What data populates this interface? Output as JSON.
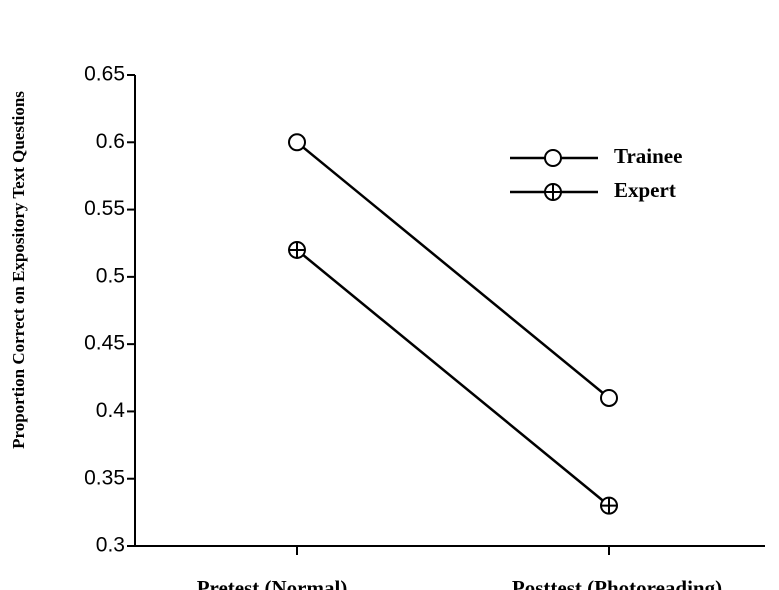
{
  "chart_data": {
    "type": "line",
    "y_label": "Proportion Correct on Expository Text Questions",
    "categories": [
      "Pretest  (Normal)",
      "Posttest  (Photoreading)"
    ],
    "series": [
      {
        "name": "Trainee",
        "color": "#000000",
        "marker": "circle",
        "values": [
          0.6,
          0.41
        ]
      },
      {
        "name": "Expert",
        "color": "#000000",
        "marker": "circle-plus",
        "values": [
          0.52,
          0.33
        ]
      }
    ],
    "ylim": [
      0.3,
      0.65
    ],
    "yticks": [
      0.3,
      0.35,
      0.4,
      0.45,
      0.5,
      0.55,
      0.6,
      0.65
    ],
    "legend": "upper right"
  }
}
